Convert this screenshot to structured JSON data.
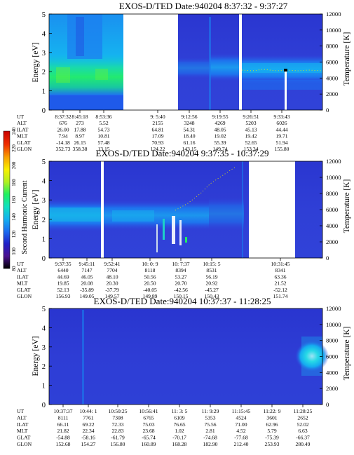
{
  "chart_data": [
    {
      "type": "heatmap",
      "title": "EXOS-D/TED   Date:940204  8:37:32 - 9:37:27",
      "ylabel": "Energy [eV]",
      "ylim": [
        0,
        5
      ],
      "yticks": [
        0,
        1,
        2,
        3,
        4,
        5
      ],
      "y2label": "Temperature [K]",
      "y2lim": [
        0,
        12000
      ],
      "y2ticks": [
        0,
        2000,
        4000,
        6000,
        8000,
        10000,
        12000
      ],
      "time_range": [
        "8:37:32",
        "9:37:27"
      ],
      "data_gaps": [
        [
          "8:55:00",
          "9:15:40"
        ],
        [
          "9:20:05",
          "9:21:00"
        ]
      ],
      "temperature_trace": {
        "approx_K": 5800,
        "drop_near": "9:35:30"
      },
      "table": {
        "rows": [
          "UT",
          "ALT",
          "ILAT",
          "MLT",
          "GLAT",
          "GLON"
        ],
        "columns": [
          [
            "8:37:32",
            "676",
            "26.00",
            "7.94",
            "-14.18",
            "352.73"
          ],
          [
            "8:45:18",
            "273",
            "17.88",
            "8.97",
            "26.15",
            "358.38"
          ],
          [
            "8:53:36",
            "5.52",
            "54.73",
            "10.81",
            "57.48",
            "13.15"
          ],
          [
            "9: 5:40",
            "2155",
            "64.81",
            "17.09",
            "70.93",
            "124.22"
          ],
          [
            "9:12:56",
            "3248",
            "54.31",
            "18.40",
            "61.16",
            "143.15"
          ],
          [
            "9:19:55",
            "4269",
            "48.05",
            "19.02",
            "55.39",
            "149.74"
          ],
          [
            "9:26:51",
            "5203",
            "45.13",
            "19.42",
            "52.65",
            "153.34"
          ],
          [
            "9:33:43",
            "6026",
            "44.44",
            "19.71",
            "51.94",
            "155.80"
          ]
        ]
      }
    },
    {
      "type": "heatmap",
      "title": "EXOS-D/TED   Date:940204  9:37:35 - 10:37:29",
      "ylabel": "Energy [eV]",
      "ylim": [
        0,
        5
      ],
      "yticks": [
        0,
        1,
        2,
        3,
        4,
        5
      ],
      "y2label": "Temperature [K]",
      "y2lim": [
        0,
        12000
      ],
      "y2ticks": [
        0,
        2000,
        4000,
        6000,
        8000,
        10000,
        12000
      ],
      "time_range": [
        "9:37:35",
        "10:37:29"
      ],
      "data_gaps": [
        [
          "9:52:00",
          "9:52:45"
        ],
        [
          "10:17:30",
          "10:31:00"
        ]
      ],
      "colorbar": {
        "label": "Second Harmonic Current",
        "ticks": [
          80,
          100,
          120,
          140,
          160,
          180,
          200,
          220,
          240
        ],
        "colors": [
          "#000000",
          "#4a1090",
          "#2020c8",
          "#1a6cf0",
          "#12b0f0",
          "#10e0c0",
          "#20f060",
          "#b0f020",
          "#f8f000",
          "#f8a000",
          "#f03000",
          "#c80000"
        ]
      },
      "table": {
        "rows": [
          "UT",
          "ALT",
          "ILAT",
          "MLT",
          "GLAT",
          "GLON"
        ],
        "columns": [
          [
            "9:37:35",
            "6440",
            "44.69",
            "19.85",
            "52.13",
            "156.93"
          ],
          [
            "9:45:11",
            "7147",
            "46.05",
            "20.08",
            "-35.89",
            "149.05"
          ],
          [
            "9:52:41",
            "7704",
            "48.10",
            "20.30",
            "-37.79",
            "149.57"
          ],
          [
            "10: 0: 9",
            "8118",
            "50.56",
            "20.50",
            "-40.05",
            "149.89"
          ],
          [
            "10: 7:37",
            "8394",
            "53.27",
            "20.70",
            "-42.56",
            "150.15"
          ],
          [
            "10:15: 5",
            "8531",
            "56.19",
            "20.92",
            "-45.27",
            "150.43"
          ],
          [
            "",
            "",
            "",
            "",
            "",
            ""
          ],
          [
            "10:31:45",
            "8341",
            "63.36",
            "21.52",
            "-52.12",
            "151.74"
          ]
        ]
      }
    },
    {
      "type": "heatmap",
      "title": "EXOS-D/TED   Date:940204  10:37:37 - 11:28:25",
      "ylabel": "Energy [eV]",
      "ylim": [
        0,
        5
      ],
      "yticks": [
        0,
        1,
        2,
        3,
        4,
        5
      ],
      "y2label": "Temperature [K]",
      "y2lim": [
        0,
        12000
      ],
      "y2ticks": [
        0,
        2000,
        4000,
        6000,
        8000,
        10000,
        12000
      ],
      "time_range": [
        "10:37:37",
        "11:28:25"
      ],
      "table": {
        "rows": [
          "UT",
          "ALT",
          "ILAT",
          "MLT",
          "GLAT",
          "GLON"
        ],
        "columns": [
          [
            "10:37:37",
            "8111",
            "66.11",
            "21.82",
            "-54.88",
            "152.68"
          ],
          [
            "10:44: 1",
            "7761",
            "69.22",
            "22.34",
            "-58.16",
            "154.27"
          ],
          [
            "10:50:25",
            "7308",
            "72.33",
            "22.83",
            "-61.79",
            "156.80"
          ],
          [
            "10:56:41",
            "6765",
            "75.03",
            "23.68",
            "-65.74",
            "160.89"
          ],
          [
            "11: 3: 5",
            "6109",
            "76.65",
            "1.02",
            "-70.17",
            "168.28"
          ],
          [
            "11: 9:29",
            "5353",
            "75.56",
            "2.81",
            "-74.68",
            "182.90"
          ],
          [
            "11:15:45",
            "4524",
            "71.00",
            "4.52",
            "-77.68",
            "212.40"
          ],
          [
            "11:22: 9",
            "3601",
            "62.96",
            "5.79",
            "-75.39",
            "253.93"
          ],
          [
            "11:28:25",
            "2652",
            "52.02",
            "6.63",
            "-66.37",
            "280.49"
          ]
        ]
      }
    }
  ]
}
